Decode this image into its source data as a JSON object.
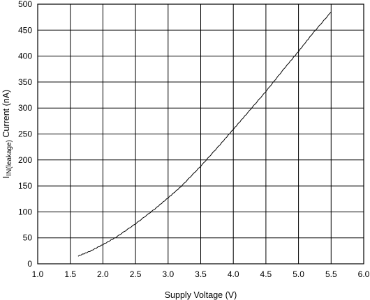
{
  "chart_data": {
    "type": "line",
    "xlabel": "Supply Voltage (V)",
    "ylabel": {
      "prefix": "I",
      "subscript": "IN(leakage)",
      "suffix": " Current (nA)"
    },
    "xlim": [
      1.0,
      6.0
    ],
    "ylim": [
      0,
      500
    ],
    "x_ticks": [
      "1.0",
      "1.5",
      "2.0",
      "2.5",
      "3.0",
      "3.5",
      "4.0",
      "4.5",
      "5.0",
      "5.5",
      "6.0"
    ],
    "y_ticks": [
      "0",
      "50",
      "100",
      "150",
      "200",
      "250",
      "300",
      "350",
      "400",
      "450",
      "500"
    ],
    "grid": true,
    "series": [
      {
        "x": [
          1.62,
          1.8,
          2.0,
          2.2,
          2.5,
          2.8,
          3.0,
          3.2,
          3.5,
          3.8,
          4.0,
          4.2,
          4.5,
          4.8,
          5.0,
          5.2,
          5.5
        ],
        "y": [
          15,
          24,
          37,
          51,
          77,
          106,
          127,
          149,
          188,
          230,
          259,
          288,
          332,
          379,
          409,
          441,
          485
        ]
      }
    ]
  }
}
